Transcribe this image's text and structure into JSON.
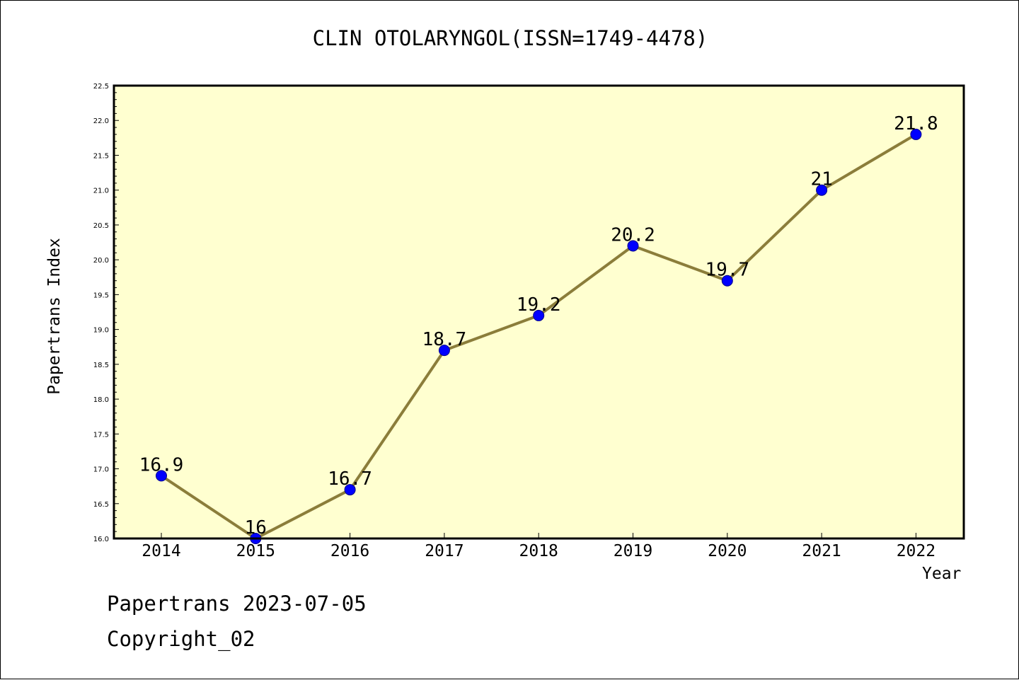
{
  "chart_data": {
    "type": "line",
    "title": "CLIN OTOLARYNGOL(ISSN=1749-4478)",
    "xlabel": "Year",
    "ylabel": "Papertrans Index",
    "categories": [
      "2014",
      "2015",
      "2016",
      "2017",
      "2018",
      "2019",
      "2020",
      "2021",
      "2022"
    ],
    "series": [
      {
        "values": [
          16.9,
          16,
          16.7,
          18.7,
          19.2,
          20.2,
          19.7,
          21,
          21.8
        ]
      }
    ],
    "data_labels": [
      "16.9",
      "16",
      "16.7",
      "18.7",
      "19.2",
      "20.2",
      "19.7",
      "21",
      "21.8"
    ],
    "ylim": [
      16.0,
      22.5
    ],
    "yticks": [
      "16.0",
      "16.5",
      "17.0",
      "17.5",
      "18.0",
      "18.5",
      "19.0",
      "19.5",
      "20.0",
      "20.5",
      "21.0",
      "21.5",
      "22.0",
      "22.5"
    ],
    "grid": false,
    "colors": {
      "plot_background": "#ffffd0",
      "line": "#8b7d3a",
      "marker": "#0000ff"
    }
  },
  "footer": {
    "line1": "Papertrans 2023-07-05",
    "line2": "Copyright_02"
  }
}
